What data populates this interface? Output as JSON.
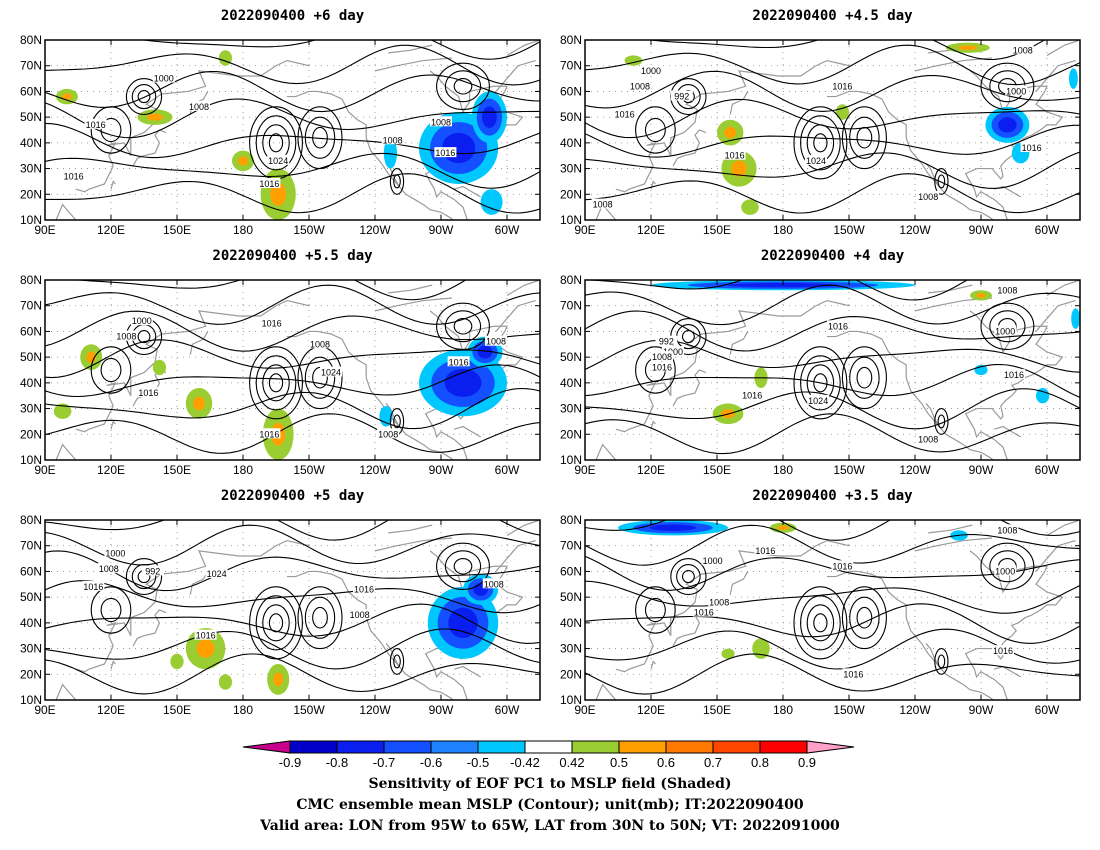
{
  "panels": [
    {
      "id": "p1",
      "title": "2022090400  +6 day",
      "labels": [
        {
          "t": "1000",
          "lon": 144,
          "lat": 65
        },
        {
          "t": "1008",
          "lon": 160,
          "lat": 54
        },
        {
          "t": "1016",
          "lon": 113,
          "lat": 47
        },
        {
          "t": "1016",
          "lon": 103,
          "lat": 27
        },
        {
          "t": "1024",
          "lon": 196,
          "lat": 33
        },
        {
          "t": "1016",
          "lon": 192,
          "lat": 24
        },
        {
          "t": "1008",
          "lon": 248,
          "lat": 41
        },
        {
          "t": "1008",
          "lon": 270,
          "lat": 48
        },
        {
          "t": "1016",
          "lon": 272,
          "lat": 36
        }
      ],
      "neg": [
        {
          "lon": 278,
          "lat": 38,
          "rx": 18,
          "ry": 14
        },
        {
          "lon": 292,
          "lat": 50,
          "rx": 8,
          "ry": 10
        },
        {
          "lon": 247,
          "lat": 36,
          "rx": 3,
          "ry": 6
        },
        {
          "lon": 293,
          "lat": 17,
          "rx": 5,
          "ry": 5
        }
      ],
      "pos": [
        {
          "lon": 196,
          "lat": 20,
          "rx": 8,
          "ry": 10
        },
        {
          "lon": 180,
          "lat": 33,
          "rx": 5,
          "ry": 4
        },
        {
          "lon": 140,
          "lat": 50,
          "rx": 8,
          "ry": 3
        },
        {
          "lon": 100,
          "lat": 58,
          "rx": 5,
          "ry": 3
        },
        {
          "lon": 172,
          "lat": 73,
          "rx": 3,
          "ry": 3
        }
      ]
    },
    {
      "id": "p2",
      "title": "2022090400  +4.5 day",
      "labels": [
        {
          "t": "1000",
          "lon": 120,
          "lat": 68
        },
        {
          "t": "1008",
          "lon": 115,
          "lat": 62
        },
        {
          "t": "992",
          "lon": 134,
          "lat": 58
        },
        {
          "t": "1016",
          "lon": 108,
          "lat": 51
        },
        {
          "t": "1016",
          "lon": 207,
          "lat": 62
        },
        {
          "t": "1016",
          "lon": 158,
          "lat": 35
        },
        {
          "t": "1024",
          "lon": 195,
          "lat": 33
        },
        {
          "t": "1008",
          "lon": 289,
          "lat": 76
        },
        {
          "t": "1000",
          "lon": 286,
          "lat": 60
        },
        {
          "t": "1016",
          "lon": 293,
          "lat": 38
        },
        {
          "t": "1008",
          "lon": 246,
          "lat": 19
        },
        {
          "t": "1008",
          "lon": 98,
          "lat": 16
        }
      ],
      "neg": [
        {
          "lon": 282,
          "lat": 47,
          "rx": 10,
          "ry": 7
        },
        {
          "lon": 288,
          "lat": 36,
          "rx": 4,
          "ry": 4
        },
        {
          "lon": 312,
          "lat": 65,
          "rx": 2,
          "ry": 4
        }
      ],
      "pos": [
        {
          "lon": 160,
          "lat": 30,
          "rx": 8,
          "ry": 7
        },
        {
          "lon": 156,
          "lat": 44,
          "rx": 6,
          "ry": 5
        },
        {
          "lon": 264,
          "lat": 77,
          "rx": 10,
          "ry": 2
        },
        {
          "lon": 165,
          "lat": 15,
          "rx": 4,
          "ry": 3
        },
        {
          "lon": 112,
          "lat": 72,
          "rx": 4,
          "ry": 2
        },
        {
          "lon": 207,
          "lat": 52,
          "rx": 3,
          "ry": 3
        }
      ]
    },
    {
      "id": "p3",
      "title": "2022090400  +5.5 day",
      "labels": [
        {
          "t": "1000",
          "lon": 134,
          "lat": 64
        },
        {
          "t": "1008",
          "lon": 127,
          "lat": 58
        },
        {
          "t": "1016",
          "lon": 193,
          "lat": 63
        },
        {
          "t": "1008",
          "lon": 215,
          "lat": 55
        },
        {
          "t": "1024",
          "lon": 220,
          "lat": 44
        },
        {
          "t": "1016",
          "lon": 137,
          "lat": 36
        },
        {
          "t": "1016",
          "lon": 192,
          "lat": 20
        },
        {
          "t": "1008",
          "lon": 246,
          "lat": 20
        },
        {
          "t": "1016",
          "lon": 278,
          "lat": 48
        },
        {
          "t": "1008",
          "lon": 295,
          "lat": 56
        }
      ],
      "neg": [
        {
          "lon": 280,
          "lat": 40,
          "rx": 20,
          "ry": 13
        },
        {
          "lon": 290,
          "lat": 52,
          "rx": 8,
          "ry": 6
        },
        {
          "lon": 245,
          "lat": 27,
          "rx": 3,
          "ry": 4
        }
      ],
      "pos": [
        {
          "lon": 196,
          "lat": 20,
          "rx": 7,
          "ry": 10
        },
        {
          "lon": 160,
          "lat": 32,
          "rx": 6,
          "ry": 6
        },
        {
          "lon": 111,
          "lat": 50,
          "rx": 5,
          "ry": 5
        },
        {
          "lon": 98,
          "lat": 29,
          "rx": 4,
          "ry": 3
        },
        {
          "lon": 142,
          "lat": 46,
          "rx": 3,
          "ry": 3
        }
      ]
    },
    {
      "id": "p4",
      "title": "2022090400  +4 day",
      "labels": [
        {
          "t": "992",
          "lon": 127,
          "lat": 56
        },
        {
          "t": "1000",
          "lon": 130,
          "lat": 52
        },
        {
          "t": "1008",
          "lon": 125,
          "lat": 50
        },
        {
          "t": "1016",
          "lon": 125,
          "lat": 46
        },
        {
          "t": "1016",
          "lon": 205,
          "lat": 62
        },
        {
          "t": "1016",
          "lon": 166,
          "lat": 35
        },
        {
          "t": "1024",
          "lon": 196,
          "lat": 33
        },
        {
          "t": "1008",
          "lon": 282,
          "lat": 76
        },
        {
          "t": "1000",
          "lon": 281,
          "lat": 60
        },
        {
          "t": "1016",
          "lon": 285,
          "lat": 43
        },
        {
          "t": "1008",
          "lon": 246,
          "lat": 18
        }
      ],
      "neg": [
        {
          "lon": 180,
          "lat": 78,
          "rx": 60,
          "ry": 2
        },
        {
          "lon": 313,
          "lat": 65,
          "rx": 2,
          "ry": 4
        },
        {
          "lon": 298,
          "lat": 35,
          "rx": 3,
          "ry": 3
        },
        {
          "lon": 270,
          "lat": 45,
          "rx": 3,
          "ry": 2
        }
      ],
      "pos": [
        {
          "lon": 155,
          "lat": 28,
          "rx": 7,
          "ry": 4
        },
        {
          "lon": 170,
          "lat": 42,
          "rx": 3,
          "ry": 4
        },
        {
          "lon": 270,
          "lat": 74,
          "rx": 5,
          "ry": 2
        }
      ]
    },
    {
      "id": "p5",
      "title": "2022090400  +5 day",
      "labels": [
        {
          "t": "1000",
          "lon": 122,
          "lat": 67
        },
        {
          "t": "1008",
          "lon": 119,
          "lat": 61
        },
        {
          "t": "992",
          "lon": 139,
          "lat": 60
        },
        {
          "t": "1016",
          "lon": 112,
          "lat": 54
        },
        {
          "t": "1024",
          "lon": 168,
          "lat": 59
        },
        {
          "t": "1016",
          "lon": 163,
          "lat": 35
        },
        {
          "t": "1016",
          "lon": 235,
          "lat": 53
        },
        {
          "t": "1008",
          "lon": 233,
          "lat": 43
        },
        {
          "t": "1008",
          "lon": 294,
          "lat": 55
        }
      ],
      "neg": [
        {
          "lon": 280,
          "lat": 40,
          "rx": 16,
          "ry": 14
        },
        {
          "lon": 288,
          "lat": 53,
          "rx": 8,
          "ry": 6
        }
      ],
      "pos": [
        {
          "lon": 163,
          "lat": 30,
          "rx": 9,
          "ry": 8
        },
        {
          "lon": 196,
          "lat": 18,
          "rx": 5,
          "ry": 6
        },
        {
          "lon": 172,
          "lat": 17,
          "rx": 3,
          "ry": 3
        },
        {
          "lon": 150,
          "lat": 25,
          "rx": 3,
          "ry": 3
        }
      ]
    },
    {
      "id": "p6",
      "title": "2022090400  +3.5 day",
      "labels": [
        {
          "t": "1000",
          "lon": 148,
          "lat": 64
        },
        {
          "t": "1016",
          "lon": 172,
          "lat": 68
        },
        {
          "t": "1016",
          "lon": 207,
          "lat": 62
        },
        {
          "t": "1008",
          "lon": 151,
          "lat": 48
        },
        {
          "t": "1016",
          "lon": 144,
          "lat": 44
        },
        {
          "t": "1008",
          "lon": 282,
          "lat": 76
        },
        {
          "t": "1000",
          "lon": 281,
          "lat": 60
        },
        {
          "t": "1016",
          "lon": 280,
          "lat": 29
        },
        {
          "t": "1016",
          "lon": 212,
          "lat": 20
        }
      ],
      "neg": [
        {
          "lon": 130,
          "lat": 77,
          "rx": 25,
          "ry": 3
        },
        {
          "lon": 260,
          "lat": 74,
          "rx": 4,
          "ry": 2
        }
      ],
      "pos": [
        {
          "lon": 180,
          "lat": 77,
          "rx": 6,
          "ry": 2
        },
        {
          "lon": 170,
          "lat": 30,
          "rx": 4,
          "ry": 4
        },
        {
          "lon": 155,
          "lat": 28,
          "rx": 3,
          "ry": 2
        }
      ]
    }
  ],
  "axes": {
    "lon_labels": [
      "90E",
      "120E",
      "150E",
      "180",
      "150W",
      "120W",
      "90W",
      "60W"
    ],
    "lon_values": [
      90,
      120,
      150,
      180,
      210,
      240,
      270,
      300
    ],
    "lat_labels": [
      "10N",
      "20N",
      "30N",
      "40N",
      "50N",
      "60N",
      "70N",
      "80N"
    ],
    "lat_values": [
      10,
      20,
      30,
      40,
      50,
      60,
      70,
      80
    ],
    "lon_range": [
      90,
      315
    ],
    "lat_range": [
      10,
      80
    ]
  },
  "colorbar": {
    "labels": [
      "-0.9",
      "-0.8",
      "-0.7",
      "-0.6",
      "-0.5",
      "-0.42",
      "0.42",
      "0.5",
      "0.6",
      "0.7",
      "0.8",
      "0.9"
    ],
    "colors": [
      "#0000c8",
      "#0a1ef0",
      "#1450ff",
      "#1e82ff",
      "#00c8ff",
      "#ffffff",
      "#9acd32",
      "#ffa000",
      "#ff7800",
      "#ff4600",
      "#ff0000"
    ],
    "low_end": "#c8008c",
    "high_end": "#ffa0c8"
  },
  "caption": {
    "line1": "Sensitivity of EOF PC1 to MSLP field (Shaded)",
    "line2": "CMC ensemble mean MSLP (Contour); unit(mb); IT:2022090400",
    "line3": "Valid area: LON from 95W to 65W, LAT from 30N to 50N; VT: 2022091000"
  }
}
